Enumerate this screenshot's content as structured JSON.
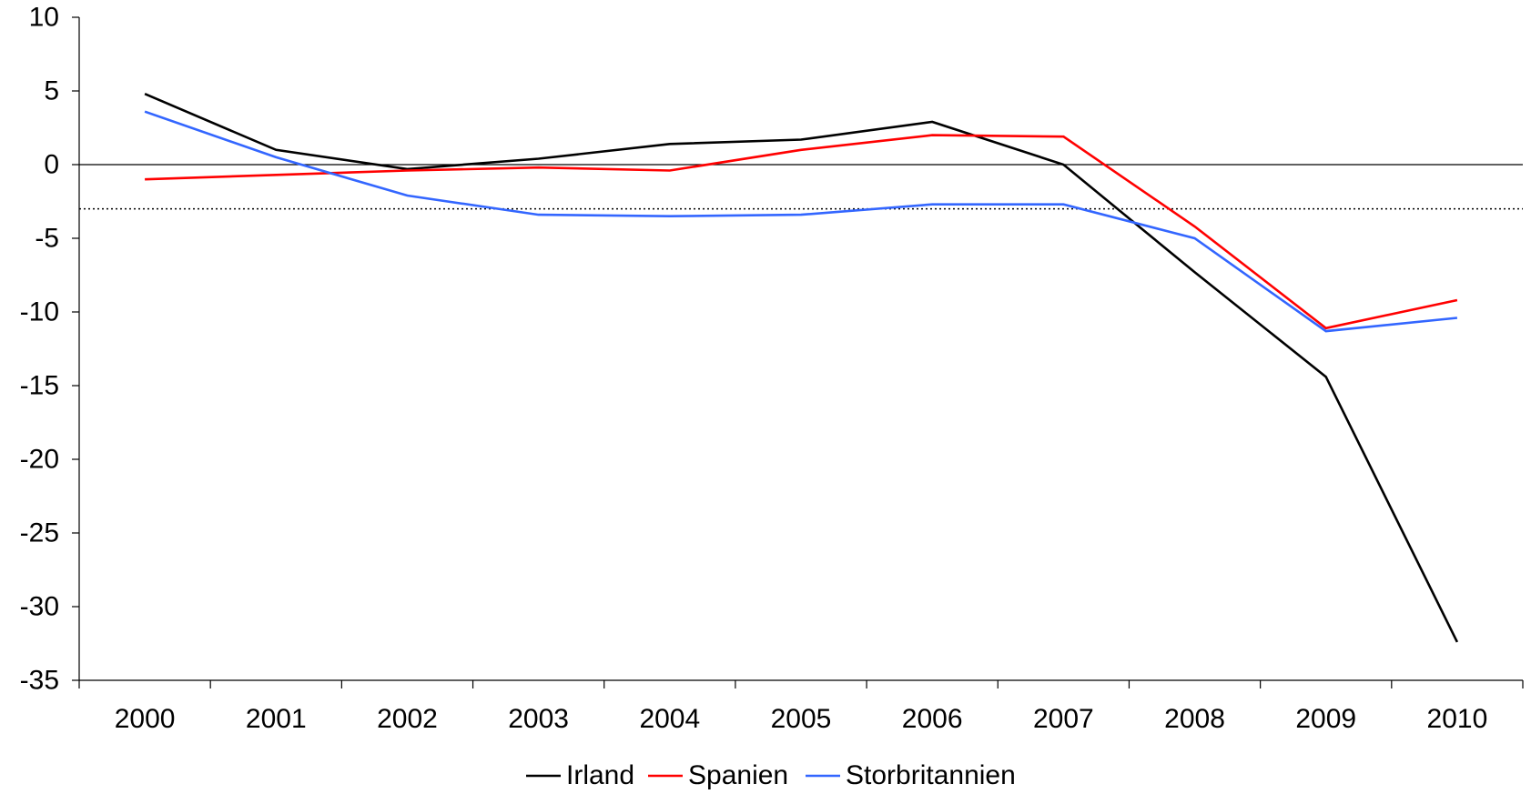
{
  "chart_data": {
    "type": "line",
    "title": "",
    "xlabel": "",
    "ylabel": "",
    "x": [
      "2000",
      "2001",
      "2002",
      "2003",
      "2004",
      "2005",
      "2006",
      "2007",
      "2008",
      "2009",
      "2010"
    ],
    "ylim": [
      -35,
      10
    ],
    "yticks": [
      "10",
      "5",
      "0",
      "-5",
      "-10",
      "-15",
      "-20",
      "-25",
      "-30",
      "-35"
    ],
    "reference_line": -3,
    "grid": false,
    "legend": {
      "position": "bottom"
    },
    "series": [
      {
        "name": "Irland",
        "color": "#000000",
        "values": [
          4.8,
          1.0,
          -0.3,
          0.4,
          1.4,
          1.7,
          2.9,
          0.0,
          -7.3,
          -14.4,
          -32.4
        ]
      },
      {
        "name": "Spanien",
        "color": "#ff0000",
        "values": [
          -1.0,
          -0.7,
          -0.4,
          -0.2,
          -0.4,
          1.0,
          2.0,
          1.9,
          -4.2,
          -11.1,
          -9.2
        ]
      },
      {
        "name": "Storbritannien",
        "color": "#3366ff",
        "values": [
          3.6,
          0.5,
          -2.1,
          -3.4,
          -3.5,
          -3.4,
          -2.7,
          -2.7,
          -5.0,
          -11.3,
          -10.4
        ]
      }
    ]
  }
}
